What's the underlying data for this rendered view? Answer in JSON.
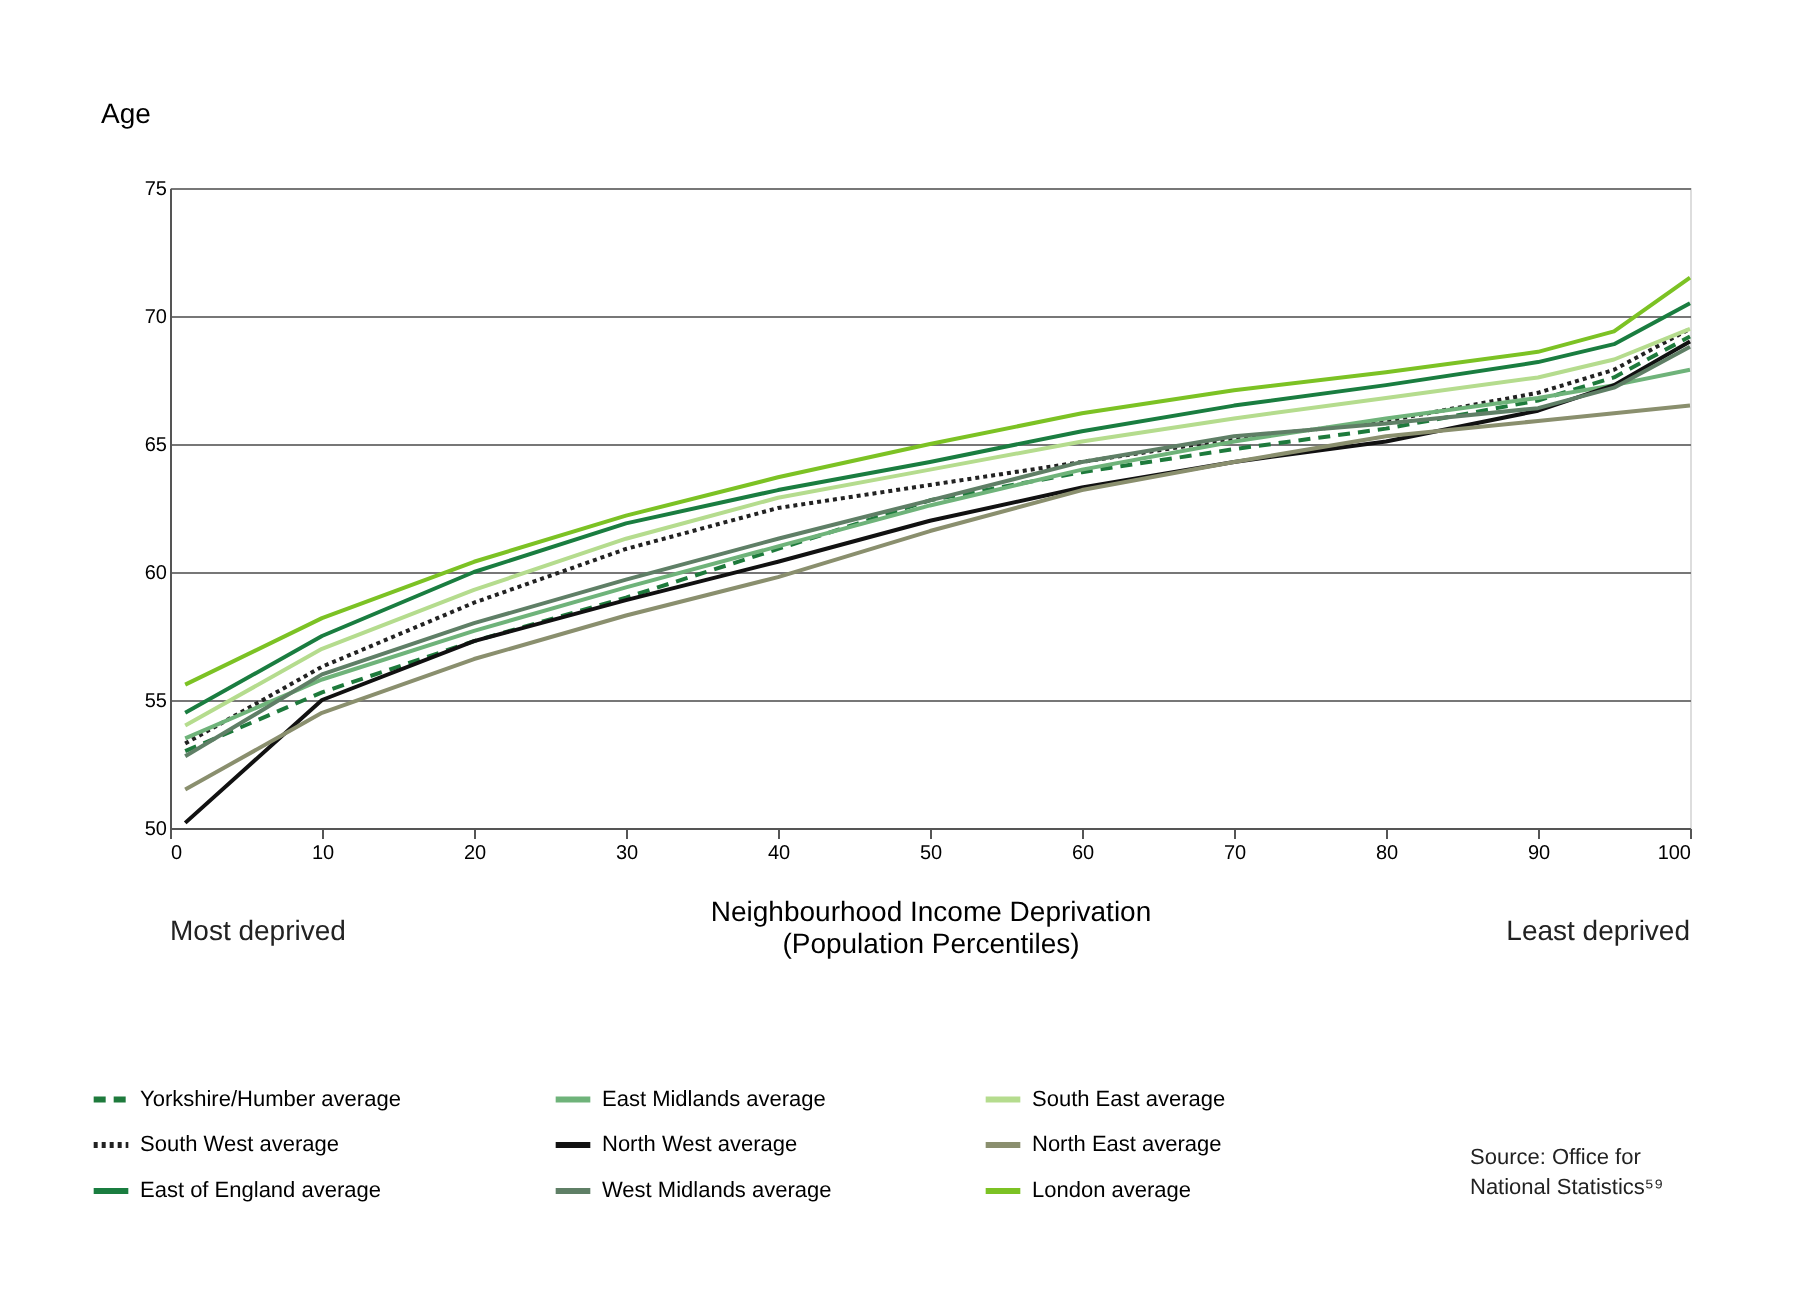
{
  "chart_data": {
    "type": "line",
    "ylabel": "Age",
    "xlabel": "Neighbourhood Income Deprivation\n(Population Percentiles)",
    "x": [
      1,
      10,
      20,
      30,
      40,
      50,
      60,
      70,
      80,
      90,
      95,
      100
    ],
    "xlim": [
      0,
      100
    ],
    "xticks": [
      0,
      10,
      20,
      30,
      40,
      50,
      60,
      70,
      80,
      90,
      100
    ],
    "ylim": [
      50,
      75
    ],
    "yticks": [
      50,
      55,
      60,
      65,
      70,
      75
    ],
    "grid": "y",
    "legend": "bottom",
    "annotations": [
      "Most deprived",
      "Least deprived",
      "Source: Office for National Statistics⁵⁹"
    ],
    "series": [
      {
        "name": "Yorkshire/Humber average",
        "color": "#1e7a3c",
        "line_style": "dashed",
        "values": [
          53.0,
          55.3,
          57.3,
          59.0,
          60.9,
          62.8,
          63.9,
          64.8,
          65.6,
          66.7,
          67.6,
          69.2
        ]
      },
      {
        "name": "South West average",
        "color": "#222222",
        "line_style": "dotted",
        "values": [
          53.3,
          56.3,
          58.8,
          60.9,
          62.5,
          63.4,
          64.3,
          65.2,
          65.9,
          67.0,
          67.9,
          69.5
        ]
      },
      {
        "name": "East of England average",
        "color": "#1a7d40",
        "line_style": "solid",
        "values": [
          54.5,
          57.5,
          60.0,
          61.9,
          63.2,
          64.3,
          65.5,
          66.5,
          67.3,
          68.2,
          68.9,
          70.5
        ]
      },
      {
        "name": "East Midlands average",
        "color": "#6fb37a",
        "line_style": "solid",
        "values": [
          53.5,
          55.8,
          57.7,
          59.4,
          61.0,
          62.6,
          64.0,
          65.1,
          66.0,
          66.8,
          67.3,
          67.9
        ]
      },
      {
        "name": "North West average",
        "color": "#111111",
        "line_style": "solid",
        "values": [
          50.2,
          55.0,
          57.3,
          58.9,
          60.4,
          62.0,
          63.3,
          64.3,
          65.1,
          66.3,
          67.3,
          69.0
        ]
      },
      {
        "name": "West Midlands average",
        "color": "#5f7f66",
        "line_style": "solid",
        "values": [
          52.8,
          56.0,
          58.0,
          59.7,
          61.3,
          62.8,
          64.3,
          65.3,
          65.8,
          66.4,
          67.2,
          68.8
        ]
      },
      {
        "name": "South East average",
        "color": "#b5dc8e",
        "line_style": "solid",
        "values": [
          54.0,
          57.0,
          59.3,
          61.3,
          62.9,
          64.0,
          65.1,
          66.0,
          66.8,
          67.6,
          68.3,
          69.5
        ]
      },
      {
        "name": "North East average",
        "color": "#8a8f6e",
        "line_style": "solid",
        "values": [
          51.5,
          54.5,
          56.6,
          58.3,
          59.8,
          61.6,
          63.2,
          64.3,
          65.3,
          65.9,
          66.2,
          66.5
        ]
      },
      {
        "name": "London average",
        "color": "#7cc224",
        "line_style": "solid",
        "values": [
          55.6,
          58.2,
          60.4,
          62.2,
          63.7,
          65.0,
          66.2,
          67.1,
          67.8,
          68.6,
          69.4,
          71.5
        ]
      }
    ]
  }
}
